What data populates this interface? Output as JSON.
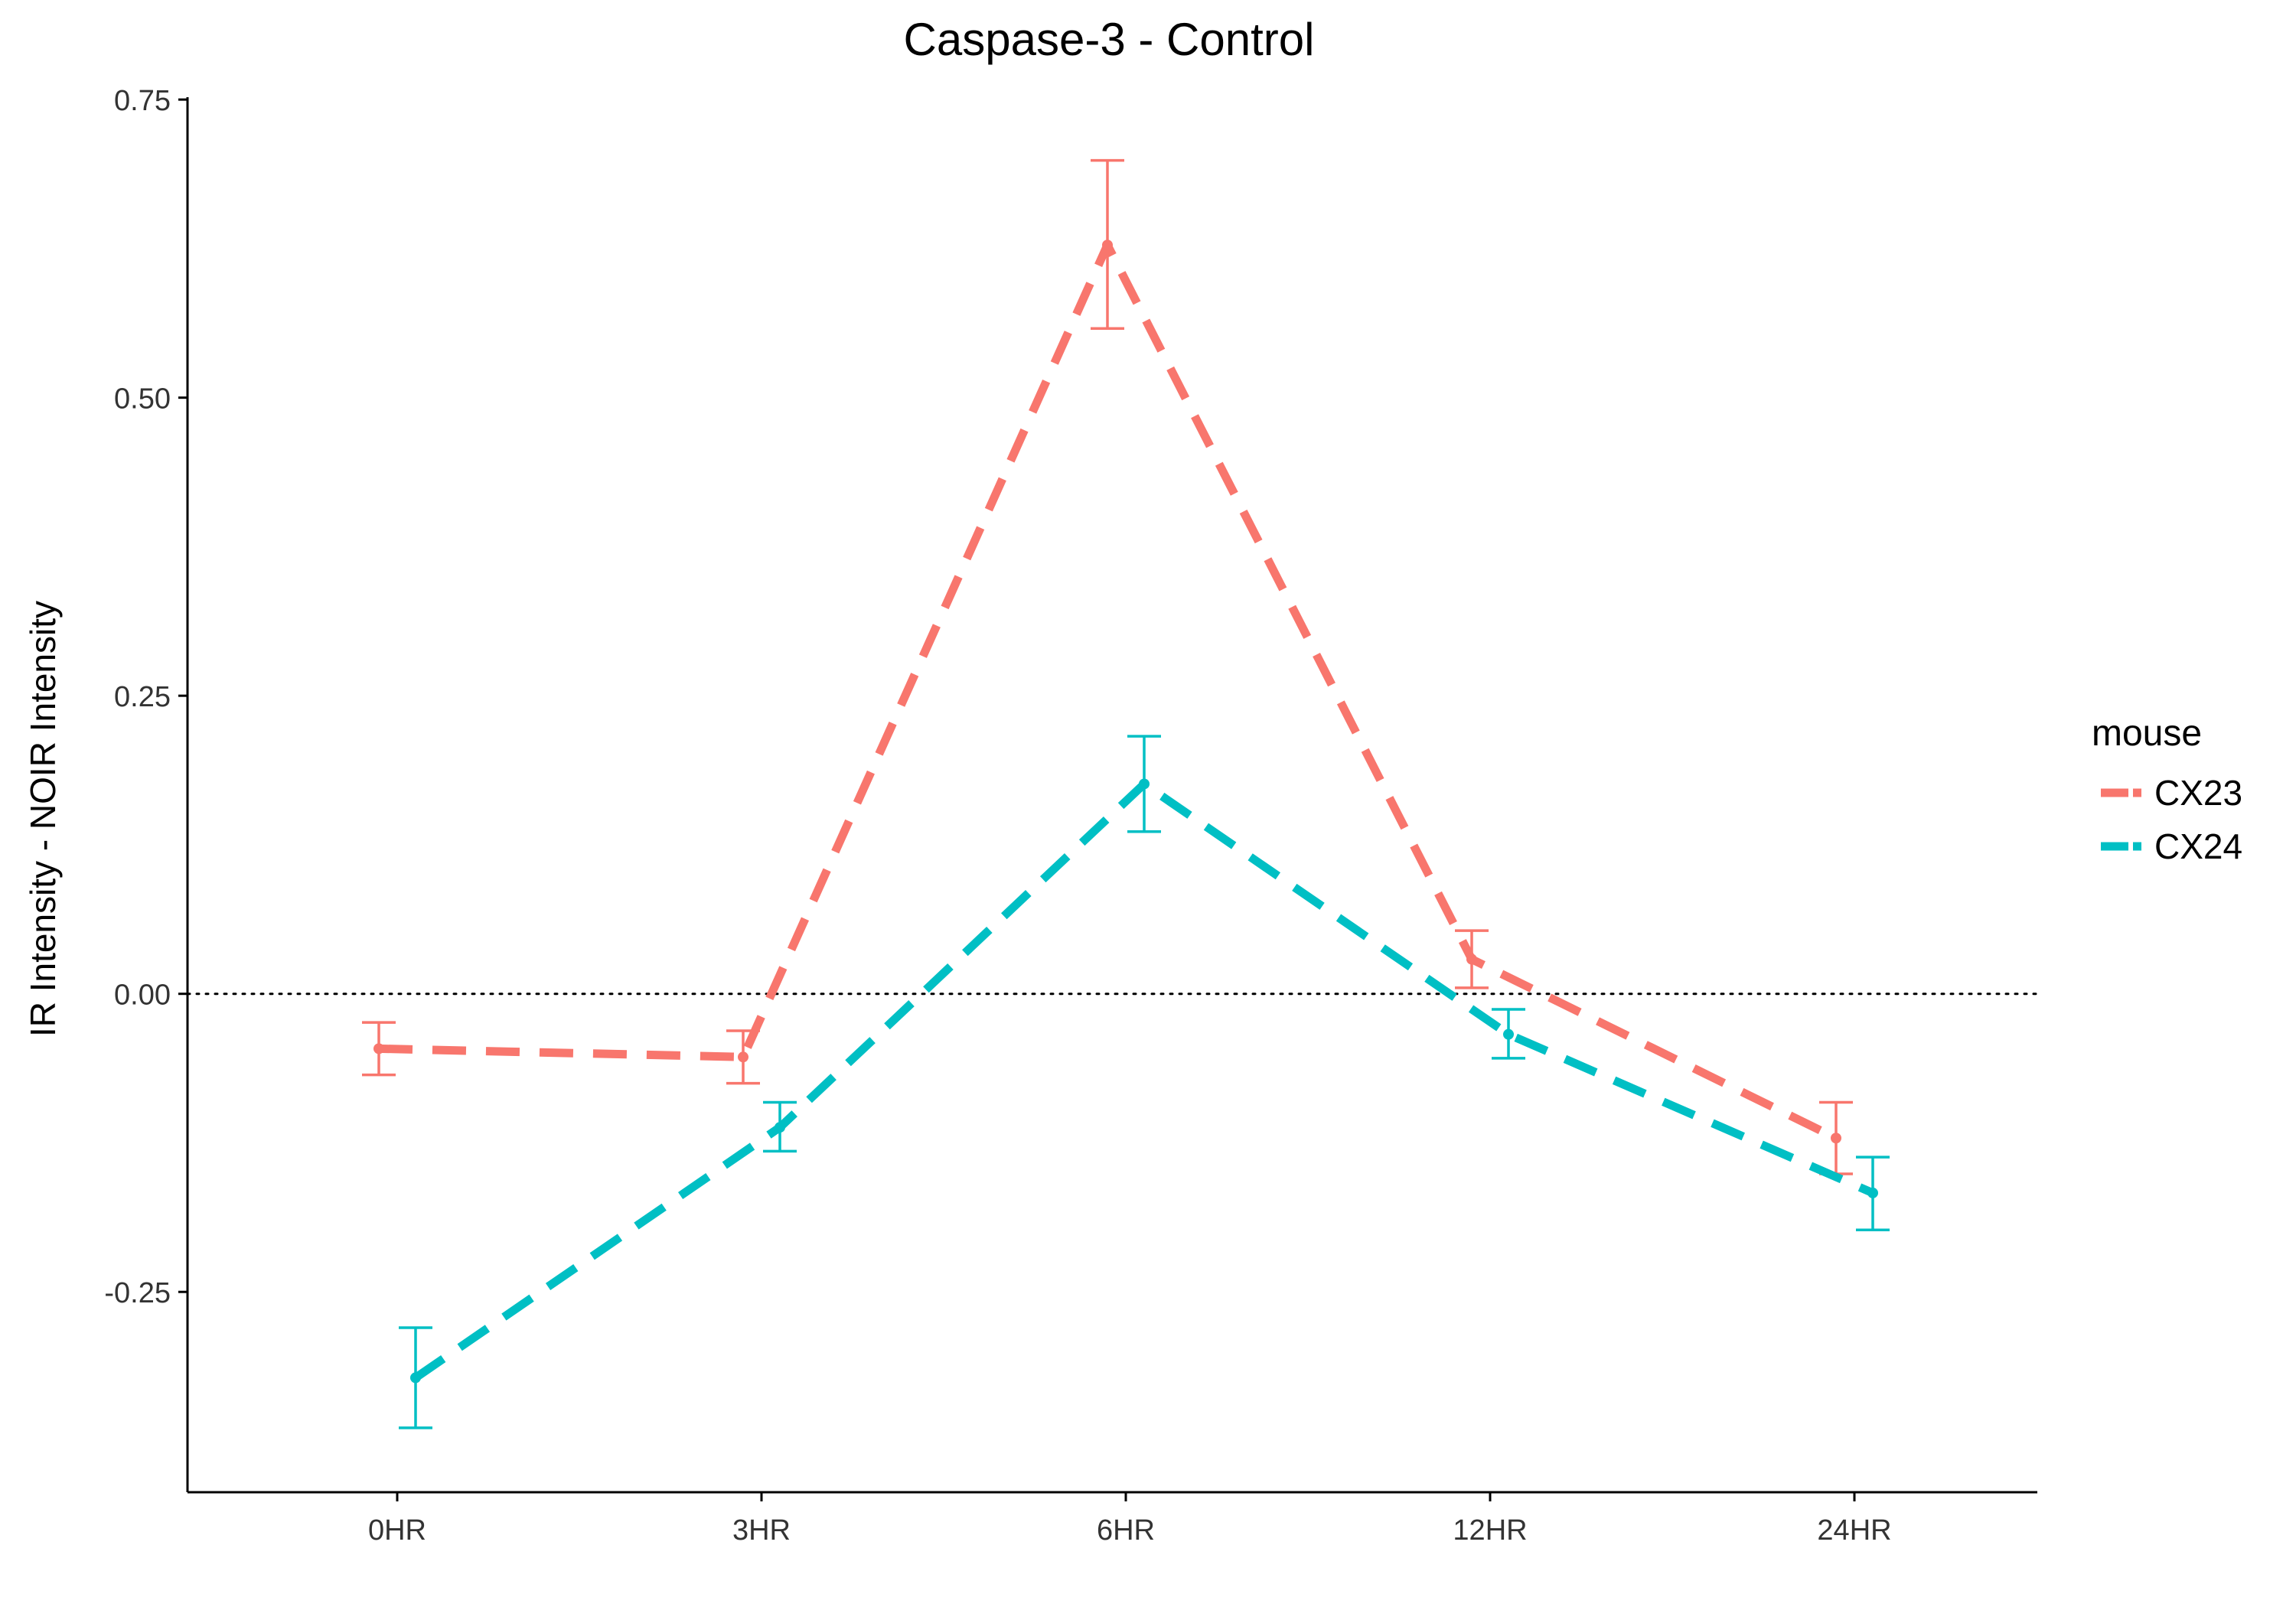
{
  "chart_data": {
    "type": "line",
    "title": "Caspase-3 - Control",
    "xlabel": "",
    "ylabel": "IR Intensity - NOIR Intensity",
    "categories": [
      "0HR",
      "3HR",
      "6HR",
      "12HR",
      "24HR"
    ],
    "ylim": [
      -0.418,
      0.752
    ],
    "yticks": [
      -0.25,
      0.0,
      0.25,
      0.5,
      0.75
    ],
    "ytick_labels": [
      "-0.25",
      "0.00",
      "0.25",
      "0.50",
      "0.75"
    ],
    "reference_line": 0,
    "grid": false,
    "legend": {
      "title": "mouse",
      "position": "right"
    },
    "series": [
      {
        "name": "CX23",
        "color": "#F8766D",
        "values": [
          -0.046,
          -0.053,
          0.628,
          0.029,
          -0.121
        ],
        "err_low": [
          -0.068,
          -0.075,
          0.558,
          0.005,
          -0.151
        ],
        "err_high": [
          -0.024,
          -0.031,
          0.699,
          0.053,
          -0.091
        ]
      },
      {
        "name": "CX24",
        "color": "#00BFC4",
        "values": [
          -0.322,
          -0.112,
          0.176,
          -0.034,
          -0.167
        ],
        "err_low": [
          -0.364,
          -0.132,
          0.136,
          -0.054,
          -0.198
        ],
        "err_high": [
          -0.28,
          -0.091,
          0.216,
          -0.013,
          -0.137
        ]
      }
    ]
  }
}
